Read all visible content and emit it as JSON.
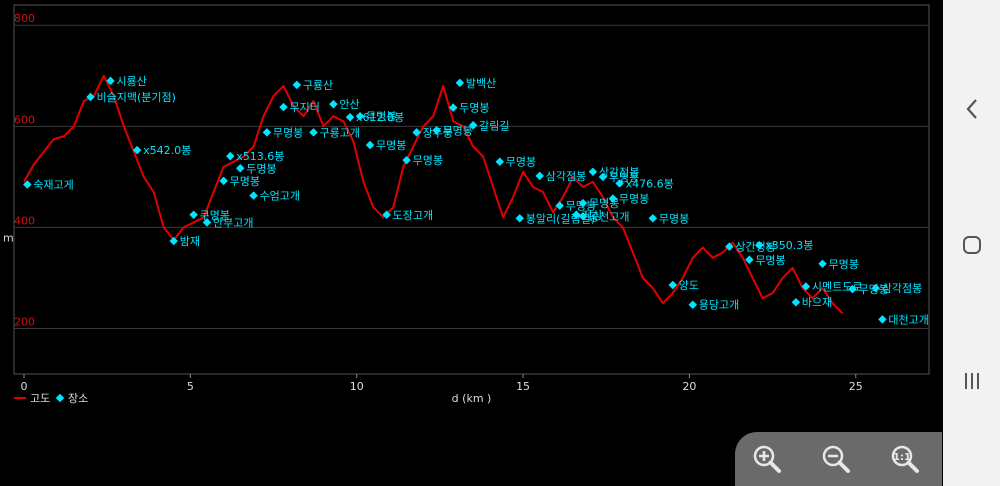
{
  "chart_data": {
    "type": "line",
    "xlabel": "d (km )",
    "ylabel": "m",
    "xlim": [
      -0.3,
      27.2
    ],
    "ylim": [
      110,
      840
    ],
    "x_ticks": [
      0,
      5,
      10,
      15,
      20,
      25
    ],
    "y_ticks": [
      200,
      400,
      600,
      800
    ],
    "grid": true,
    "legend_position": "bottom-left",
    "series": [
      {
        "name": "고도",
        "color": "#e00000",
        "points": [
          [
            0,
            490
          ],
          [
            0.3,
            525
          ],
          [
            0.6,
            550
          ],
          [
            0.9,
            575
          ],
          [
            1.2,
            580
          ],
          [
            1.5,
            600
          ],
          [
            1.8,
            650
          ],
          [
            2.1,
            660
          ],
          [
            2.4,
            700
          ],
          [
            2.7,
            660
          ],
          [
            3.0,
            600
          ],
          [
            3.3,
            550
          ],
          [
            3.6,
            500
          ],
          [
            3.9,
            470
          ],
          [
            4.2,
            400
          ],
          [
            4.5,
            375
          ],
          [
            4.8,
            400
          ],
          [
            5.1,
            410
          ],
          [
            5.4,
            420
          ],
          [
            5.7,
            470
          ],
          [
            6.0,
            520
          ],
          [
            6.3,
            530
          ],
          [
            6.6,
            540
          ],
          [
            6.9,
            560
          ],
          [
            7.2,
            620
          ],
          [
            7.5,
            660
          ],
          [
            7.8,
            680
          ],
          [
            8.1,
            640
          ],
          [
            8.4,
            620
          ],
          [
            8.7,
            650
          ],
          [
            9.0,
            600
          ],
          [
            9.3,
            620
          ],
          [
            9.6,
            610
          ],
          [
            9.9,
            570
          ],
          [
            10.2,
            490
          ],
          [
            10.5,
            440
          ],
          [
            10.8,
            420
          ],
          [
            11.1,
            440
          ],
          [
            11.4,
            520
          ],
          [
            11.7,
            560
          ],
          [
            12.0,
            600
          ],
          [
            12.3,
            620
          ],
          [
            12.6,
            680
          ],
          [
            12.9,
            610
          ],
          [
            13.2,
            600
          ],
          [
            13.5,
            560
          ],
          [
            13.8,
            540
          ],
          [
            14.1,
            480
          ],
          [
            14.4,
            420
          ],
          [
            14.7,
            460
          ],
          [
            15.0,
            510
          ],
          [
            15.3,
            480
          ],
          [
            15.6,
            470
          ],
          [
            15.9,
            430
          ],
          [
            16.2,
            460
          ],
          [
            16.5,
            500
          ],
          [
            16.8,
            480
          ],
          [
            17.1,
            490
          ],
          [
            17.4,
            460
          ],
          [
            17.7,
            420
          ],
          [
            18.0,
            400
          ],
          [
            18.3,
            350
          ],
          [
            18.6,
            300
          ],
          [
            18.9,
            280
          ],
          [
            19.2,
            250
          ],
          [
            19.5,
            270
          ],
          [
            19.8,
            300
          ],
          [
            20.1,
            340
          ],
          [
            20.4,
            360
          ],
          [
            20.7,
            340
          ],
          [
            21.0,
            350
          ],
          [
            21.3,
            370
          ],
          [
            21.6,
            340
          ],
          [
            21.9,
            300
          ],
          [
            22.2,
            260
          ],
          [
            22.5,
            270
          ],
          [
            22.8,
            300
          ],
          [
            23.1,
            320
          ],
          [
            23.4,
            280
          ],
          [
            23.7,
            260
          ],
          [
            24.0,
            280
          ],
          [
            24.3,
            250
          ],
          [
            24.6,
            230
          ]
        ]
      }
    ],
    "places": [
      {
        "name": "숙재고게",
        "x": 0.1,
        "y": 485
      },
      {
        "name": "비슬지맥(분기점)",
        "x": 2.0,
        "y": 658
      },
      {
        "name": "시룡산",
        "x": 2.6,
        "y": 690
      },
      {
        "name": "x542.0봉",
        "x": 3.4,
        "y": 553
      },
      {
        "name": "밤재",
        "x": 4.5,
        "y": 373
      },
      {
        "name": "쿠명봉",
        "x": 5.1,
        "y": 425
      },
      {
        "name": "안부고개",
        "x": 5.5,
        "y": 410
      },
      {
        "name": "무명봉",
        "x": 6.0,
        "y": 492
      },
      {
        "name": "x513.6봉",
        "x": 6.2,
        "y": 541
      },
      {
        "name": "두명봉",
        "x": 6.5,
        "y": 517
      },
      {
        "name": "수엄고개",
        "x": 6.9,
        "y": 463
      },
      {
        "name": "무명봉",
        "x": 7.3,
        "y": 588
      },
      {
        "name": "무지터",
        "x": 7.8,
        "y": 638
      },
      {
        "name": "구룡산",
        "x": 8.2,
        "y": 682
      },
      {
        "name": "구룡고개",
        "x": 8.7,
        "y": 588
      },
      {
        "name": "안산",
        "x": 9.3,
        "y": 644
      },
      {
        "name": "x612.0봉",
        "x": 9.8,
        "y": 618
      },
      {
        "name": "무명봉",
        "x": 10.1,
        "y": 620
      },
      {
        "name": "무명봉",
        "x": 10.4,
        "y": 563
      },
      {
        "name": "도장고개",
        "x": 10.9,
        "y": 425
      },
      {
        "name": "무명봉",
        "x": 11.5,
        "y": 533
      },
      {
        "name": "장두봉",
        "x": 11.8,
        "y": 588
      },
      {
        "name": "무명봉",
        "x": 12.4,
        "y": 592
      },
      {
        "name": "두명봉",
        "x": 12.9,
        "y": 637
      },
      {
        "name": "발백산",
        "x": 13.1,
        "y": 686
      },
      {
        "name": "갈림길",
        "x": 13.5,
        "y": 602
      },
      {
        "name": "무명봉",
        "x": 14.3,
        "y": 530
      },
      {
        "name": "삼각점봉",
        "x": 15.5,
        "y": 502
      },
      {
        "name": "봉알리(길림길)",
        "x": 14.9,
        "y": 418
      },
      {
        "name": "무명봉",
        "x": 16.1,
        "y": 443
      },
      {
        "name": "정상",
        "x": 16.6,
        "y": 425
      },
      {
        "name": "무명봉",
        "x": 16.8,
        "y": 448
      },
      {
        "name": "공천고개",
        "x": 16.8,
        "y": 422
      },
      {
        "name": "상강정봉",
        "x": 17.1,
        "y": 510
      },
      {
        "name": "무명봉",
        "x": 17.4,
        "y": 500
      },
      {
        "name": "x476.6봉",
        "x": 17.9,
        "y": 487
      },
      {
        "name": "무명봉",
        "x": 17.7,
        "y": 457
      },
      {
        "name": "무명봉",
        "x": 18.9,
        "y": 418
      },
      {
        "name": "양도",
        "x": 19.5,
        "y": 286
      },
      {
        "name": "용당고개",
        "x": 20.1,
        "y": 247
      },
      {
        "name": "상간정봉",
        "x": 21.2,
        "y": 362
      },
      {
        "name": "x350.3봉",
        "x": 22.1,
        "y": 365
      },
      {
        "name": "무명봉",
        "x": 21.8,
        "y": 336
      },
      {
        "name": "시멘트도로",
        "x": 23.5,
        "y": 283
      },
      {
        "name": "바으재",
        "x": 23.2,
        "y": 252
      },
      {
        "name": "무명봉",
        "x": 24.0,
        "y": 328
      },
      {
        "name": "무명봉",
        "x": 24.9,
        "y": 278
      },
      {
        "name": "삼각점봉",
        "x": 25.6,
        "y": 280
      },
      {
        "name": "대천고개",
        "x": 25.8,
        "y": 218
      }
    ],
    "legend": [
      {
        "label": "고도",
        "marker": "line",
        "color": "#e00000"
      },
      {
        "label": "장소",
        "marker": "diamond",
        "color": "#00e5ff"
      }
    ]
  },
  "nav": {
    "back_icon": "back-icon",
    "home_icon": "home-icon",
    "recents_icon": "recents-icon"
  },
  "zoom": {
    "zoom_in_icon": "zoom-in-icon",
    "zoom_out_icon": "zoom-out-icon",
    "zoom_reset_icon": "zoom-reset-icon"
  }
}
